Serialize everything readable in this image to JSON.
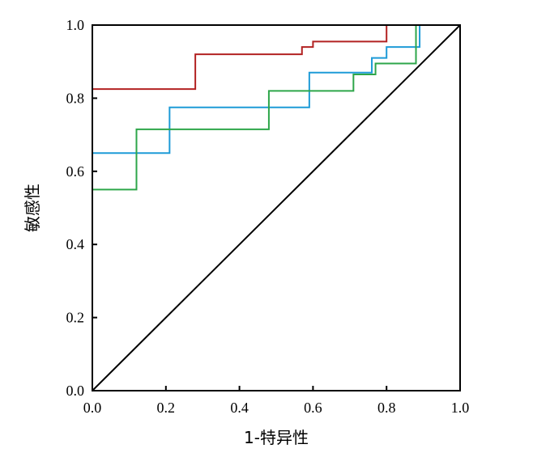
{
  "chart_data": {
    "type": "line",
    "title": "",
    "xlabel": "1-特异性",
    "ylabel": "敏感性",
    "xlim": [
      0,
      1
    ],
    "ylim": [
      0,
      1
    ],
    "grid": false,
    "x_ticks": [
      "0.0",
      "0.2",
      "0.4",
      "0.6",
      "0.8",
      "1.0"
    ],
    "y_ticks": [
      "0.0",
      "0.2",
      "0.4",
      "0.6",
      "0.8",
      "1.0"
    ],
    "reference_line": {
      "points": [
        [
          0,
          0
        ],
        [
          1,
          1
        ]
      ],
      "color": "#000000"
    },
    "series": [
      {
        "color": "#b22222",
        "points": [
          [
            0,
            0.825
          ],
          [
            0.28,
            0.825
          ],
          [
            0.28,
            0.92
          ],
          [
            0.57,
            0.92
          ],
          [
            0.57,
            0.94
          ],
          [
            0.6,
            0.94
          ],
          [
            0.6,
            0.955
          ],
          [
            0.8,
            0.955
          ],
          [
            0.8,
            1.0
          ],
          [
            1.0,
            1.0
          ]
        ]
      },
      {
        "color": "#1e9bd7",
        "points": [
          [
            0,
            0.65
          ],
          [
            0.21,
            0.65
          ],
          [
            0.21,
            0.775
          ],
          [
            0.59,
            0.775
          ],
          [
            0.59,
            0.87
          ],
          [
            0.76,
            0.87
          ],
          [
            0.76,
            0.91
          ],
          [
            0.8,
            0.91
          ],
          [
            0.8,
            0.94
          ],
          [
            0.89,
            0.94
          ],
          [
            0.89,
            1.0
          ],
          [
            1.0,
            1.0
          ]
        ]
      },
      {
        "color": "#2ea64a",
        "points": [
          [
            0,
            0.55
          ],
          [
            0.12,
            0.55
          ],
          [
            0.12,
            0.715
          ],
          [
            0.48,
            0.715
          ],
          [
            0.48,
            0.82
          ],
          [
            0.71,
            0.82
          ],
          [
            0.71,
            0.865
          ],
          [
            0.77,
            0.865
          ],
          [
            0.77,
            0.895
          ],
          [
            0.88,
            0.895
          ],
          [
            0.88,
            1.0
          ],
          [
            1.0,
            1.0
          ]
        ]
      }
    ]
  }
}
